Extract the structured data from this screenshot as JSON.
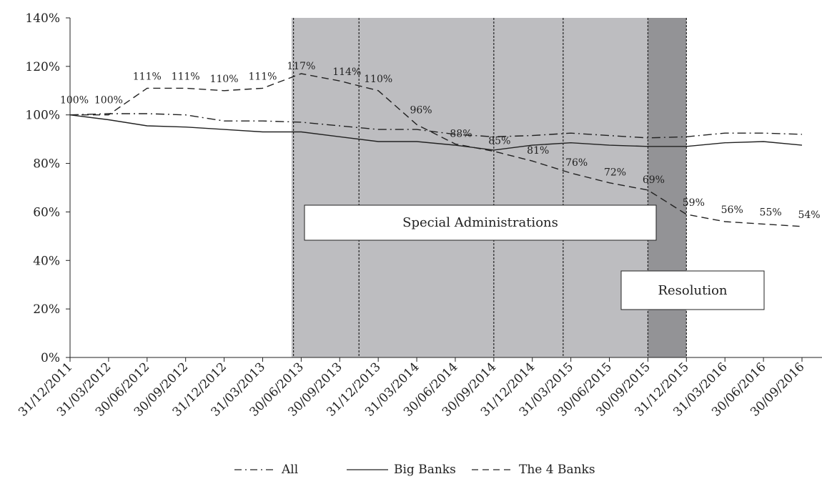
{
  "chart_data": {
    "type": "line",
    "categories": [
      "31/12/2011",
      "31/03/2012",
      "30/06/2012",
      "30/09/2012",
      "31/12/2012",
      "31/03/2013",
      "30/06/2013",
      "30/09/2013",
      "31/12/2013",
      "31/03/2014",
      "30/06/2014",
      "30/09/2014",
      "31/12/2014",
      "31/03/2015",
      "30/06/2015",
      "30/09/2015",
      "31/12/2015",
      "31/03/2016",
      "30/06/2016",
      "30/09/2016"
    ],
    "y_ticks": [
      "0%",
      "20%",
      "40%",
      "60%",
      "80%",
      "100%",
      "120%",
      "140%"
    ],
    "ylim": [
      0,
      140
    ],
    "series": [
      {
        "name": "All",
        "style": "dash-dot",
        "color": "#222222",
        "values": [
          100,
          100.5,
          100.5,
          100,
          97.5,
          97.5,
          97,
          95.5,
          94,
          94,
          92,
          91,
          91.5,
          92.5,
          91.5,
          90.5,
          91,
          92.5,
          92.5,
          92
        ]
      },
      {
        "name": "Big Banks",
        "style": "solid",
        "color": "#222222",
        "values": [
          100,
          98,
          95.5,
          95,
          94,
          93,
          93,
          91,
          89,
          89,
          87.5,
          85.5,
          87.5,
          88.5,
          87.5,
          87,
          87,
          88.5,
          89,
          87.5
        ]
      },
      {
        "name": "The 4 Banks",
        "style": "dashed",
        "color": "#222222",
        "values": [
          100,
          100,
          111,
          111,
          110,
          111,
          117,
          114,
          110,
          96,
          88,
          85,
          81,
          76,
          72,
          69,
          59,
          56,
          55,
          54
        ],
        "labels": [
          "100%",
          "100%",
          "111%",
          "111%",
          "110%",
          "111%",
          "117%",
          "114%",
          "110%",
          "96%",
          "88%",
          "85%",
          "81%",
          "76%",
          "72%",
          "69%",
          "59%",
          "56%",
          "55%",
          "54%"
        ]
      }
    ],
    "shaded_regions": [
      {
        "from_index": 5.75,
        "to_index": 15.0,
        "color": "#bdbdc0"
      },
      {
        "from_index": 15.0,
        "to_index": 16.0,
        "color": "#939396"
      }
    ],
    "vlines": [
      5.8,
      7.5,
      11.0,
      12.8,
      15.0,
      16.0
    ],
    "annotations": [
      {
        "text": "Special Administrations"
      },
      {
        "text": "Resolution"
      }
    ],
    "legend": {
      "placement": "bottom-center"
    },
    "grid": false
  }
}
